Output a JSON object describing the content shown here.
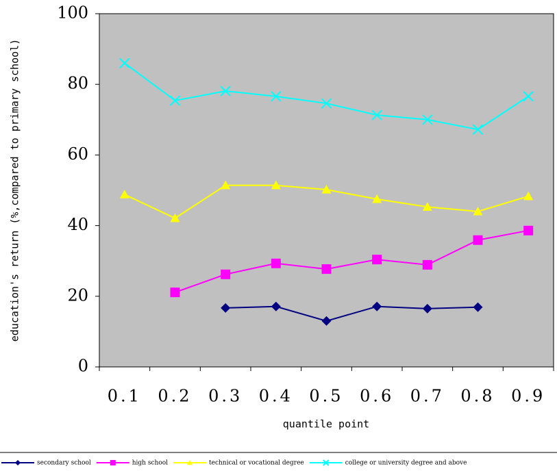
{
  "chart_data": {
    "type": "line",
    "x_label": "quantile point",
    "y_label": "education's return (%,compared to primary school)",
    "categories": [
      "0.1",
      "0.2",
      "0.3",
      "0.4",
      "0.5",
      "0.6",
      "0.7",
      "0.8",
      "0.9"
    ],
    "series": [
      {
        "name": "secondary school",
        "color": "#000080",
        "marker": "diamond",
        "values": [
          null,
          null,
          16.7,
          17.1,
          13.0,
          17.1,
          16.5,
          16.9,
          null
        ]
      },
      {
        "name": "high school",
        "color": "#ff00ff",
        "marker": "square",
        "values": [
          null,
          21.1,
          26.2,
          29.3,
          27.7,
          30.4,
          28.9,
          35.9,
          38.6
        ]
      },
      {
        "name": "technical or vocational degree",
        "color": "#ffff00",
        "marker": "triangle",
        "values": [
          48.8,
          42.1,
          51.4,
          51.4,
          50.2,
          47.5,
          45.3,
          44.0,
          48.3
        ]
      },
      {
        "name": "college or university degree and above",
        "color": "#00ffff",
        "marker": "x",
        "values": [
          86.0,
          75.4,
          78.1,
          76.6,
          74.6,
          71.3,
          70.0,
          67.2,
          76.6
        ]
      }
    ],
    "ylim": [
      0,
      100
    ],
    "yticks": [
      0,
      20,
      40,
      60,
      80,
      100
    ],
    "plot_background": "#c0c0c0",
    "legend": "bottom"
  }
}
